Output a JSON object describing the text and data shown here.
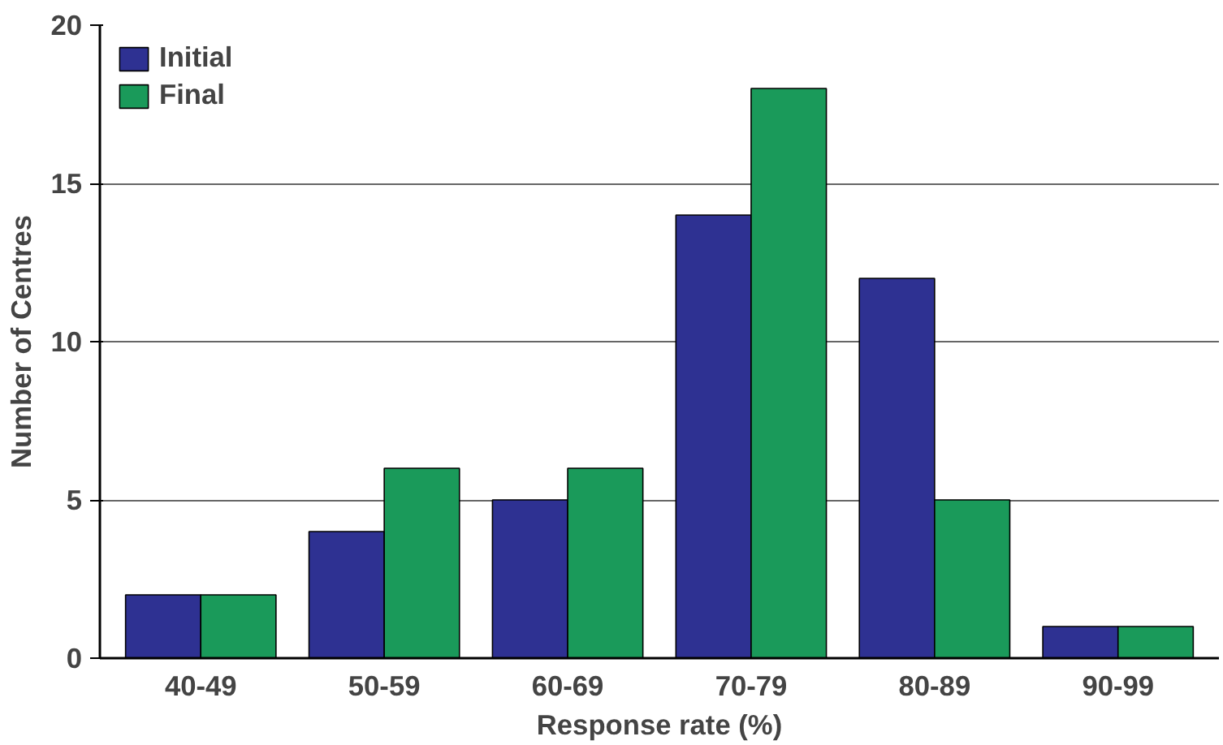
{
  "chart_data": {
    "type": "bar",
    "xlabel": "Response rate (%)",
    "ylabel": "Number of Centres",
    "categories": [
      "40-49",
      "50-59",
      "60-69",
      "70-79",
      "80-89",
      "90-99"
    ],
    "series": [
      {
        "name": "Initial",
        "color": "#2e3192",
        "values": [
          2,
          4,
          5,
          14,
          12,
          1
        ]
      },
      {
        "name": "Final",
        "color": "#1a9a5a",
        "values": [
          2,
          6,
          6,
          18,
          5,
          1
        ]
      }
    ],
    "ylim": [
      0,
      20
    ],
    "yticks": [
      0,
      5,
      10,
      15,
      20
    ],
    "grid": "y",
    "legend": "top left"
  }
}
